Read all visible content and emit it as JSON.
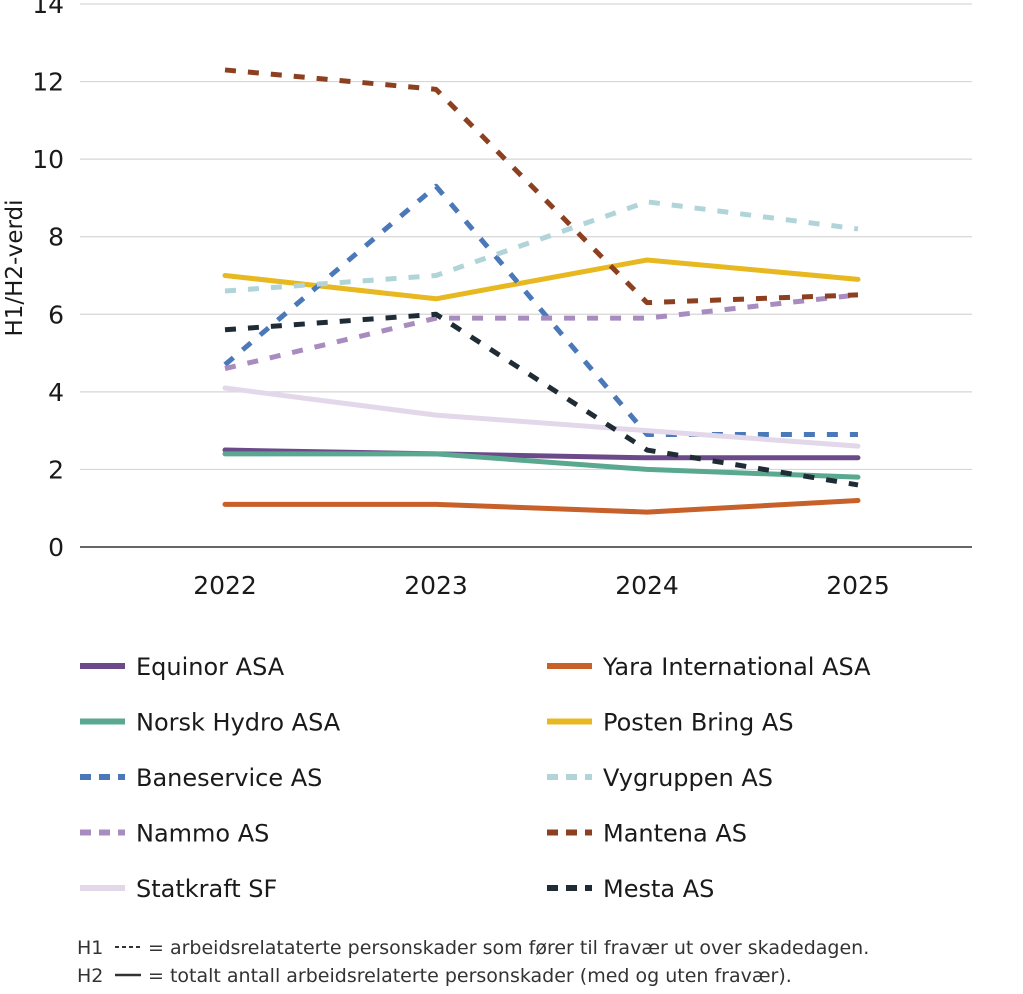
{
  "chart_data": {
    "type": "line",
    "title": "",
    "xlabel": "",
    "ylabel": "H1/H2-verdi",
    "x": [
      "2022",
      "2023",
      "2024",
      "2025"
    ],
    "y_ticks": [
      "0",
      "2",
      "4",
      "6",
      "8",
      "10",
      "12",
      "14"
    ],
    "ylim": [
      0,
      14
    ],
    "grid": "horizontal",
    "legend_position": "bottom",
    "series": [
      {
        "name": "Equinor ASA",
        "color": "#6b4a8a",
        "style": "solid",
        "values": [
          2.5,
          2.4,
          2.3,
          2.3
        ]
      },
      {
        "name": "Yara International ASA",
        "color": "#c8602a",
        "style": "solid",
        "values": [
          1.1,
          1.1,
          0.9,
          1.2
        ]
      },
      {
        "name": "Norsk Hydro ASA",
        "color": "#5aa890",
        "style": "solid",
        "values": [
          2.4,
          2.4,
          2.0,
          1.8
        ]
      },
      {
        "name": "Posten Bring AS",
        "color": "#e8b820",
        "style": "solid",
        "values": [
          7.0,
          6.4,
          7.4,
          6.9
        ]
      },
      {
        "name": "Baneservice AS",
        "color": "#4a78b8",
        "style": "dashed",
        "values": [
          4.7,
          9.3,
          2.9,
          2.9
        ]
      },
      {
        "name": "Vygruppen AS",
        "color": "#b0d4d8",
        "style": "dashed",
        "values": [
          6.6,
          7.0,
          8.9,
          8.2
        ]
      },
      {
        "name": "Nammo AS",
        "color": "#a88cc0",
        "style": "dashed",
        "values": [
          4.6,
          5.9,
          5.9,
          6.5
        ]
      },
      {
        "name": "Mantena AS",
        "color": "#8c4020",
        "style": "dashed",
        "values": [
          12.3,
          11.8,
          6.3,
          6.5
        ]
      },
      {
        "name": "Statkraft SF",
        "color": "#e2d8ea",
        "style": "solid",
        "values": [
          4.1,
          3.4,
          3.0,
          2.6
        ]
      },
      {
        "name": "Mesta AS",
        "color": "#1f2c36",
        "style": "dashed",
        "values": [
          5.6,
          6.0,
          2.5,
          1.6
        ]
      }
    ]
  },
  "notes": {
    "h1_prefix": "H1",
    "h1_text": "= arbeidsrelataterte personskader som fører til fravær ut over skadedagen.",
    "h2_prefix": "H2",
    "h2_text": "= totalt antall arbeidsrelaterte personskader (med og uten fravær)."
  }
}
